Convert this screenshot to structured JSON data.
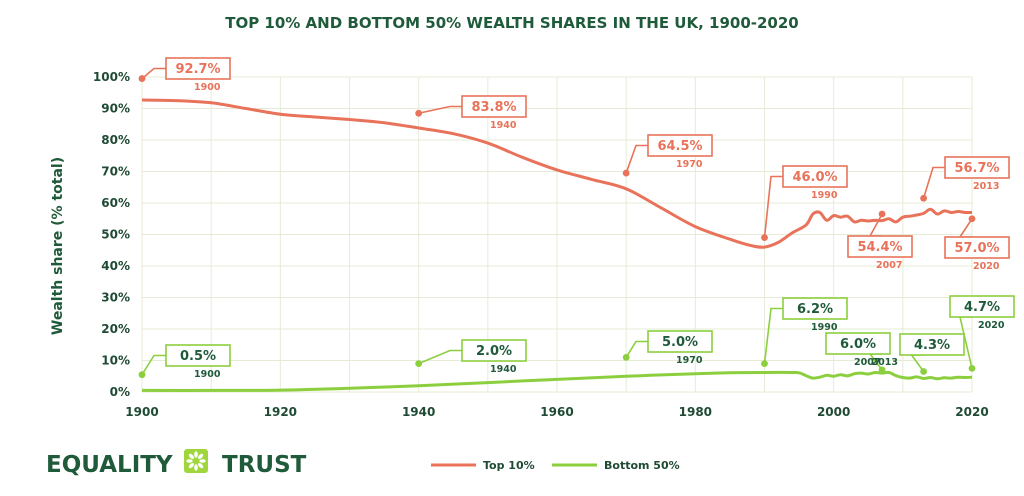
{
  "chart_data": {
    "type": "line",
    "title": "TOP 10% AND BOTTOM 50% WEALTH SHARES IN THE UK, 1900-2020",
    "ylabel": "Wealth share (% total)",
    "xlabel": "",
    "xlim": [
      1900,
      2020
    ],
    "ylim": [
      0,
      100
    ],
    "x_ticks": [
      "1900",
      "1920",
      "1940",
      "1960",
      "1980",
      "2000",
      "2020"
    ],
    "y_ticks": [
      "0%",
      "10%",
      "20%",
      "30%",
      "40%",
      "50%",
      "60%",
      "70%",
      "80%",
      "90%",
      "100%"
    ],
    "grid": true,
    "legend_position": "bottom-center",
    "series": [
      {
        "name": "Top 10%",
        "color": "#e8735a",
        "points": [
          [
            1900,
            92.7
          ],
          [
            1905,
            92.5
          ],
          [
            1910,
            91.8
          ],
          [
            1915,
            90
          ],
          [
            1920,
            88.2
          ],
          [
            1925,
            87.3
          ],
          [
            1930,
            86.5
          ],
          [
            1935,
            85.5
          ],
          [
            1940,
            83.8
          ],
          [
            1945,
            82
          ],
          [
            1950,
            79
          ],
          [
            1955,
            74.5
          ],
          [
            1960,
            70.5
          ],
          [
            1965,
            67.5
          ],
          [
            1970,
            64.5
          ],
          [
            1975,
            58.5
          ],
          [
            1980,
            52.5
          ],
          [
            1985,
            48.5
          ],
          [
            1988,
            46.5
          ],
          [
            1990,
            46.0
          ],
          [
            1992,
            47.5
          ],
          [
            1994,
            50.5
          ],
          [
            1996,
            53
          ],
          [
            1997,
            56.5
          ],
          [
            1998,
            57
          ],
          [
            1999,
            54.5
          ],
          [
            2000,
            56
          ],
          [
            2001,
            55.5
          ],
          [
            2002,
            55.8
          ],
          [
            2003,
            54
          ],
          [
            2004,
            54.5
          ],
          [
            2005,
            54.3
          ],
          [
            2006,
            54.5
          ],
          [
            2007,
            54.4
          ],
          [
            2008,
            55
          ],
          [
            2009,
            54
          ],
          [
            2010,
            55.5
          ],
          [
            2011,
            55.8
          ],
          [
            2012,
            56.2
          ],
          [
            2013,
            56.7
          ],
          [
            2014,
            58
          ],
          [
            2015,
            56.5
          ],
          [
            2016,
            57.5
          ],
          [
            2017,
            57
          ],
          [
            2018,
            57.3
          ],
          [
            2019,
            57
          ],
          [
            2020,
            57.0
          ]
        ]
      },
      {
        "name": "Bottom 50%",
        "color": "#8ccf3e",
        "points": [
          [
            1900,
            0.5
          ],
          [
            1910,
            0.5
          ],
          [
            1920,
            0.6
          ],
          [
            1930,
            1.2
          ],
          [
            1940,
            2.0
          ],
          [
            1950,
            3
          ],
          [
            1960,
            4
          ],
          [
            1970,
            5.0
          ],
          [
            1980,
            5.8
          ],
          [
            1985,
            6.1
          ],
          [
            1990,
            6.2
          ],
          [
            1994,
            6.2
          ],
          [
            1995,
            6.1
          ],
          [
            1996,
            5.2
          ],
          [
            1997,
            4.4
          ],
          [
            1998,
            4.7
          ],
          [
            1999,
            5.3
          ],
          [
            2000,
            5.0
          ],
          [
            2001,
            5.5
          ],
          [
            2002,
            5.1
          ],
          [
            2003,
            5.8
          ],
          [
            2004,
            6.0
          ],
          [
            2005,
            5.7
          ],
          [
            2006,
            6.2
          ],
          [
            2007,
            6.0
          ],
          [
            2008,
            6.2
          ],
          [
            2009,
            5.2
          ],
          [
            2010,
            4.6
          ],
          [
            2011,
            4.4
          ],
          [
            2012,
            4.8
          ],
          [
            2013,
            4.3
          ],
          [
            2014,
            4.6
          ],
          [
            2015,
            4.2
          ],
          [
            2016,
            4.5
          ],
          [
            2017,
            4.4
          ],
          [
            2018,
            4.7
          ],
          [
            2019,
            4.6
          ],
          [
            2020,
            4.7
          ]
        ]
      }
    ],
    "annotations": [
      {
        "series": 0,
        "value": "92.7%",
        "year": "1900",
        "pt": [
          1900,
          99.5
        ],
        "box": [
          166,
          58
        ],
        "yearPos": "below"
      },
      {
        "series": 0,
        "value": "83.8%",
        "year": "1940",
        "pt": [
          1940,
          88.5
        ],
        "box": [
          462,
          96
        ],
        "yearPos": "below"
      },
      {
        "series": 0,
        "value": "64.5%",
        "year": "1970",
        "pt": [
          1970,
          69.5
        ],
        "box": [
          648,
          135
        ],
        "yearPos": "below"
      },
      {
        "series": 0,
        "value": "46.0%",
        "year": "1990",
        "pt": [
          1990,
          49
        ],
        "box": [
          783,
          166
        ],
        "yearPos": "below"
      },
      {
        "series": 0,
        "value": "54.4%",
        "year": "2007",
        "pt": [
          2007,
          56.5
        ],
        "box": [
          848,
          236
        ],
        "yearPos": "below"
      },
      {
        "series": 0,
        "value": "56.7%",
        "year": "2013",
        "pt": [
          2013,
          61.5
        ],
        "box": [
          945,
          157
        ],
        "yearPos": "below"
      },
      {
        "series": 0,
        "value": "57.0%",
        "year": "2020",
        "pt": [
          2020,
          55
        ],
        "box": [
          945,
          237
        ],
        "yearPos": "below"
      },
      {
        "series": 1,
        "value": "0.5%",
        "year": "1900",
        "pt": [
          1900,
          5.5
        ],
        "box": [
          166,
          345
        ],
        "yearPos": "below"
      },
      {
        "series": 1,
        "value": "2.0%",
        "year": "1940",
        "pt": [
          1940,
          9
        ],
        "box": [
          462,
          340
        ],
        "yearPos": "below"
      },
      {
        "series": 1,
        "value": "5.0%",
        "year": "1970",
        "pt": [
          1970,
          11
        ],
        "box": [
          648,
          331
        ],
        "yearPos": "below"
      },
      {
        "series": 1,
        "value": "6.2%",
        "year": "1990",
        "pt": [
          1990,
          9
        ],
        "box": [
          783,
          298
        ],
        "yearPos": "below"
      },
      {
        "series": 1,
        "value": "6.0%",
        "year": "2007",
        "pt": [
          2007,
          7
        ],
        "box": [
          826,
          333
        ],
        "yearPos": "below"
      },
      {
        "series": 1,
        "value": "4.3%",
        "year": "2013",
        "pt": [
          2013,
          6.5
        ],
        "box": [
          900,
          334
        ],
        "yearPos": "left-below"
      },
      {
        "series": 1,
        "value": "4.7%",
        "year": "2020",
        "pt": [
          2020,
          7.5
        ],
        "box": [
          950,
          296
        ],
        "yearPos": "below"
      }
    ]
  },
  "brand": {
    "left_word": "EQUALITY",
    "right_word": "TRUST",
    "mark_color": "#9fd63d",
    "text_color": "#1f5a3a"
  },
  "colors": {
    "top10": "#e8735a",
    "bottom50": "#8ccf3e",
    "text": "#1f4a34",
    "grid": "#e6ebd6"
  }
}
